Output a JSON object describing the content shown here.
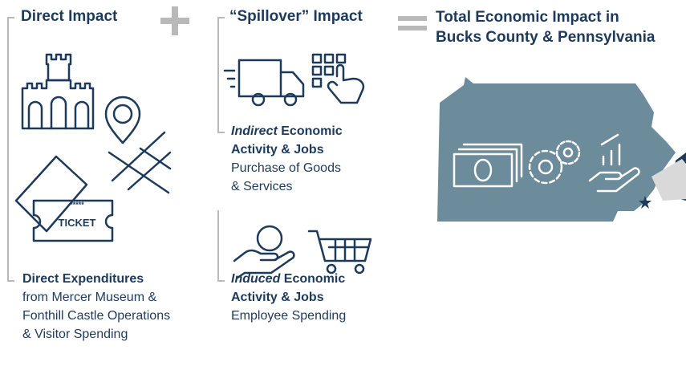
{
  "direct": {
    "heading": "Direct Impact",
    "ticket_stars": "*****",
    "ticket_text": "TICKET",
    "caption_title": "Direct Expenditures",
    "caption_lines": [
      "from Mercer Museum &",
      "Fonthill Castle Operations",
      "& Visitor Spending"
    ]
  },
  "spillover": {
    "heading": "“Spillover” Impact",
    "indirect": {
      "emphasis": "Indirect",
      "title_rest": " Economic",
      "title_line2": "Activity & Jobs",
      "description_lines": [
        "Purchase of Goods",
        "& Services"
      ]
    },
    "induced": {
      "emphasis": "Induced",
      "title_rest": " Economic",
      "title_line2": "Activity & Jobs",
      "description_lines": [
        "Employee Spending"
      ]
    }
  },
  "total": {
    "heading_lines": [
      "Total Economic Impact in",
      "Bucks County & Pennsylvania"
    ]
  }
}
